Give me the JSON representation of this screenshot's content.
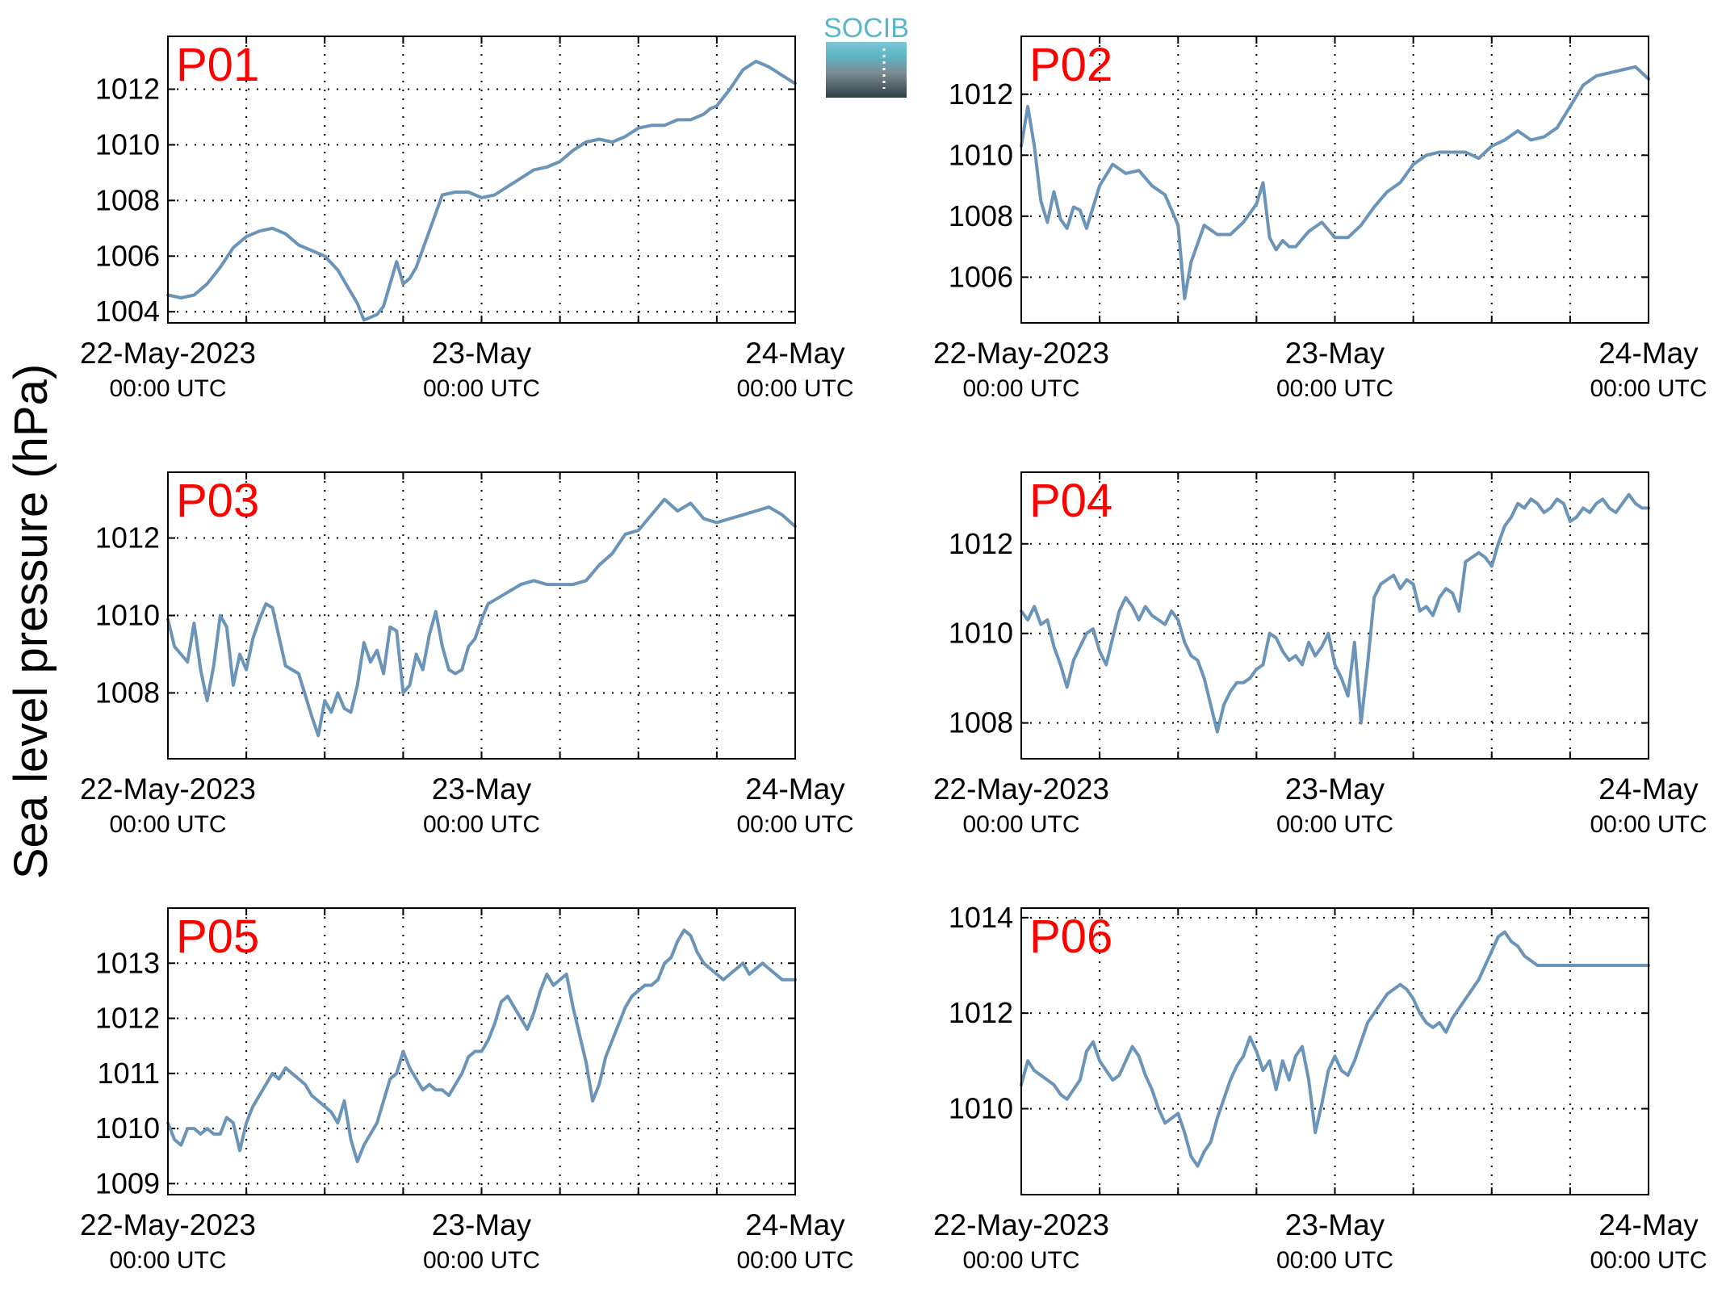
{
  "figure": {
    "ylabel": "Sea level pressure (hPa)",
    "logo_text": "SOCIB",
    "line_color": "#6a94b8",
    "label_color": "#ff0000",
    "x_ticks": [
      {
        "date": "22-May-2023",
        "time": "00:00 UTC"
      },
      {
        "date": "23-May",
        "time": "00:00 UTC"
      },
      {
        "date": "24-May",
        "time": "00:00 UTC"
      }
    ]
  },
  "chart_data": [
    {
      "type": "line",
      "title": "P01",
      "x_unit": "hours since 22-May-2023 00:00 UTC",
      "xlim": [
        0,
        48
      ],
      "ylim": [
        1003.6,
        1013.9
      ],
      "yticks": [
        1004,
        1006,
        1008,
        1010,
        1012
      ],
      "x": [
        0,
        1,
        2,
        3,
        4,
        5,
        6,
        7,
        8,
        9,
        10,
        11,
        12,
        13,
        14,
        14.5,
        15,
        15.5,
        16,
        16.5,
        17,
        17.5,
        18,
        18.5,
        19,
        20,
        21,
        22,
        23,
        24,
        25,
        26,
        27,
        28,
        29,
        30,
        31,
        32,
        33,
        34,
        35,
        36,
        37,
        38,
        39,
        40,
        41,
        41.5,
        42,
        43,
        44,
        45,
        46,
        47,
        48
      ],
      "y": [
        1004.6,
        1004.5,
        1004.6,
        1005,
        1005.6,
        1006.3,
        1006.7,
        1006.9,
        1007.0,
        1006.8,
        1006.4,
        1006.2,
        1006.0,
        1005.5,
        1004.7,
        1004.3,
        1003.7,
        1003.8,
        1003.9,
        1004.2,
        1005.0,
        1005.8,
        1005.0,
        1005.2,
        1005.6,
        1006.9,
        1008.2,
        1008.3,
        1008.3,
        1008.1,
        1008.2,
        1008.5,
        1008.8,
        1009.1,
        1009.2,
        1009.4,
        1009.8,
        1010.1,
        1010.2,
        1010.1,
        1010.3,
        1010.6,
        1010.7,
        1010.7,
        1010.9,
        1010.9,
        1011.1,
        1011.3,
        1011.4,
        1012.0,
        1012.7,
        1013.0,
        1012.8,
        1012.5,
        1012.2
      ]
    },
    {
      "type": "line",
      "title": "P02",
      "x_unit": "hours since 22-May-2023 00:00 UTC",
      "xlim": [
        0,
        48
      ],
      "ylim": [
        1004.5,
        1013.9
      ],
      "yticks": [
        1006,
        1008,
        1010,
        1012
      ],
      "x": [
        0,
        0.5,
        1,
        1.5,
        2,
        2.5,
        3,
        3.5,
        4,
        4.5,
        5,
        5.5,
        6,
        7,
        8,
        9,
        10,
        11,
        12,
        12.5,
        13,
        13.5,
        14,
        15,
        16,
        17,
        18,
        18.5,
        19,
        19.5,
        20,
        20.5,
        21,
        22,
        23,
        24,
        25,
        26,
        27,
        28,
        29,
        30,
        31,
        32,
        33,
        34,
        35,
        36,
        37,
        38,
        39,
        40,
        41,
        42,
        43,
        44,
        45,
        46,
        47,
        48
      ],
      "y": [
        1010.3,
        1011.6,
        1010.3,
        1008.5,
        1007.8,
        1008.8,
        1007.9,
        1007.6,
        1008.3,
        1008.2,
        1007.6,
        1008.3,
        1009.0,
        1009.7,
        1009.4,
        1009.5,
        1009.0,
        1008.7,
        1007.7,
        1005.3,
        1006.5,
        1007.1,
        1007.7,
        1007.4,
        1007.4,
        1007.8,
        1008.4,
        1009.1,
        1007.3,
        1006.9,
        1007.2,
        1007.0,
        1007.0,
        1007.5,
        1007.8,
        1007.3,
        1007.3,
        1007.7,
        1008.3,
        1008.8,
        1009.1,
        1009.7,
        1010.0,
        1010.1,
        1010.1,
        1010.1,
        1009.9,
        1010.3,
        1010.5,
        1010.8,
        1010.5,
        1010.6,
        1010.9,
        1011.6,
        1012.3,
        1012.6,
        1012.7,
        1012.8,
        1012.9,
        1012.5
      ]
    },
    {
      "type": "line",
      "title": "P03",
      "x_unit": "hours since 22-May-2023 00:00 UTC",
      "xlim": [
        0,
        48
      ],
      "ylim": [
        1006.3,
        1013.7
      ],
      "yticks": [
        1008,
        1010,
        1012
      ],
      "x": [
        0,
        0.5,
        1,
        1.5,
        2,
        2.5,
        3,
        3.5,
        4,
        4.5,
        5,
        5.5,
        6,
        6.5,
        7,
        7.5,
        8,
        9,
        10,
        11,
        11.5,
        12,
        12.5,
        13,
        13.5,
        14,
        14.5,
        15,
        15.5,
        16,
        16.5,
        17,
        17.5,
        18,
        18.5,
        19,
        19.5,
        20,
        20.5,
        21,
        21.5,
        22,
        22.5,
        23,
        23.5,
        24,
        24.5,
        25,
        26,
        27,
        28,
        29,
        30,
        31,
        32,
        33,
        34,
        35,
        36,
        37,
        38,
        39,
        40,
        41,
        42,
        43,
        44,
        45,
        46,
        47,
        48
      ],
      "y": [
        1009.9,
        1009.2,
        1009.0,
        1008.8,
        1009.8,
        1008.6,
        1007.8,
        1008.7,
        1010.0,
        1009.7,
        1008.2,
        1009.0,
        1008.6,
        1009.4,
        1009.9,
        1010.3,
        1010.2,
        1008.7,
        1008.5,
        1007.4,
        1006.9,
        1007.8,
        1007.5,
        1008.0,
        1007.6,
        1007.5,
        1008.2,
        1009.3,
        1008.8,
        1009.1,
        1008.5,
        1009.7,
        1009.6,
        1008.0,
        1008.2,
        1009.0,
        1008.6,
        1009.5,
        1010.1,
        1009.2,
        1008.6,
        1008.5,
        1008.6,
        1009.2,
        1009.4,
        1009.9,
        1010.3,
        1010.4,
        1010.6,
        1010.8,
        1010.9,
        1010.8,
        1010.8,
        1010.8,
        1010.9,
        1011.3,
        1011.6,
        1012.1,
        1012.2,
        1012.6,
        1013.0,
        1012.7,
        1012.9,
        1012.5,
        1012.4,
        1012.5,
        1012.6,
        1012.7,
        1012.8,
        1012.6,
        1012.3
      ]
    },
    {
      "type": "line",
      "title": "P04",
      "x_unit": "hours since 22-May-2023 00:00 UTC",
      "xlim": [
        0,
        48
      ],
      "ylim": [
        1007.2,
        1013.6
      ],
      "yticks": [
        1008,
        1010,
        1012
      ],
      "x": [
        0,
        0.5,
        1,
        1.5,
        2,
        2.5,
        3,
        3.5,
        4,
        4.5,
        5,
        5.5,
        6,
        6.5,
        7,
        7.5,
        8,
        8.5,
        9,
        9.5,
        10,
        10.5,
        11,
        11.5,
        12,
        12.5,
        13,
        13.5,
        14,
        14.5,
        15,
        15.5,
        16,
        16.5,
        17,
        17.5,
        18,
        18.5,
        19,
        19.5,
        20,
        20.5,
        21,
        21.5,
        22,
        22.5,
        23,
        23.5,
        24,
        24.5,
        25,
        25.5,
        26,
        26.5,
        27,
        27.5,
        28,
        28.5,
        29,
        29.5,
        30,
        30.5,
        31,
        31.5,
        32,
        32.5,
        33,
        33.5,
        34,
        34.5,
        35,
        35.5,
        36,
        36.5,
        37,
        37.5,
        38,
        38.5,
        39,
        39.5,
        40,
        40.5,
        41,
        41.5,
        42,
        42.5,
        43,
        43.5,
        44,
        44.5,
        45,
        45.5,
        46,
        46.5,
        47,
        47.5,
        48
      ],
      "y": [
        1010.5,
        1010.3,
        1010.6,
        1010.2,
        1010.3,
        1009.7,
        1009.3,
        1008.8,
        1009.4,
        1009.7,
        1010.0,
        1010.1,
        1009.6,
        1009.3,
        1009.9,
        1010.5,
        1010.8,
        1010.6,
        1010.3,
        1010.6,
        1010.4,
        1010.3,
        1010.2,
        1010.5,
        1010.3,
        1009.8,
        1009.5,
        1009.4,
        1009.0,
        1008.4,
        1007.8,
        1008.4,
        1008.7,
        1008.9,
        1008.9,
        1009.0,
        1009.2,
        1009.3,
        1010.0,
        1009.9,
        1009.6,
        1009.4,
        1009.5,
        1009.3,
        1009.8,
        1009.5,
        1009.7,
        1010.0,
        1009.3,
        1009.0,
        1008.6,
        1009.8,
        1008.0,
        1009.3,
        1010.8,
        1011.1,
        1011.2,
        1011.3,
        1011.0,
        1011.2,
        1011.1,
        1010.5,
        1010.6,
        1010.4,
        1010.8,
        1011.0,
        1010.9,
        1010.5,
        1011.6,
        1011.7,
        1011.8,
        1011.7,
        1011.5,
        1012.0,
        1012.4,
        1012.6,
        1012.9,
        1012.8,
        1013.0,
        1012.9,
        1012.7,
        1012.8,
        1013.0,
        1012.9,
        1012.5,
        1012.6,
        1012.8,
        1012.7,
        1012.9,
        1013.0,
        1012.8,
        1012.7,
        1012.9,
        1013.1,
        1012.9,
        1012.8,
        1012.8
      ]
    },
    {
      "type": "line",
      "title": "P05",
      "x_unit": "hours since 22-May-2023 00:00 UTC",
      "xlim": [
        0,
        48
      ],
      "ylim": [
        1008.8,
        1014.0
      ],
      "yticks": [
        1009,
        1010,
        1011,
        1012,
        1013
      ],
      "x": [
        0,
        0.5,
        1,
        1.5,
        2,
        2.5,
        3,
        3.5,
        4,
        4.5,
        5,
        5.5,
        6,
        6.5,
        7,
        7.5,
        8,
        8.5,
        9,
        9.5,
        10,
        10.5,
        11,
        11.5,
        12,
        12.5,
        13,
        13.5,
        14,
        14.5,
        15,
        15.5,
        16,
        16.5,
        17,
        17.5,
        18,
        18.5,
        19,
        19.5,
        20,
        20.5,
        21,
        21.5,
        22,
        22.5,
        23,
        23.5,
        24,
        24.5,
        25,
        25.5,
        26,
        26.5,
        27,
        27.5,
        28,
        28.5,
        29,
        29.5,
        30,
        30.5,
        31,
        31.5,
        32,
        32.5,
        33,
        33.5,
        34,
        34.5,
        35,
        35.5,
        36,
        36.5,
        37,
        37.5,
        38,
        38.5,
        39,
        39.5,
        40,
        40.5,
        41,
        41.5,
        42,
        42.5,
        43,
        43.5,
        44,
        44.5,
        45,
        45.5,
        46,
        46.5,
        47,
        47.5,
        48
      ],
      "y": [
        1010.1,
        1009.8,
        1009.7,
        1010.0,
        1010.0,
        1009.9,
        1010.0,
        1009.9,
        1009.9,
        1010.2,
        1010.1,
        1009.6,
        1010.1,
        1010.4,
        1010.6,
        1010.8,
        1011.0,
        1010.9,
        1011.1,
        1011.0,
        1010.9,
        1010.8,
        1010.6,
        1010.5,
        1010.4,
        1010.3,
        1010.1,
        1010.5,
        1009.8,
        1009.4,
        1009.7,
        1009.9,
        1010.1,
        1010.5,
        1010.9,
        1011.0,
        1011.4,
        1011.1,
        1010.9,
        1010.7,
        1010.8,
        1010.7,
        1010.7,
        1010.6,
        1010.8,
        1011.0,
        1011.3,
        1011.4,
        1011.4,
        1011.6,
        1011.9,
        1012.3,
        1012.4,
        1012.2,
        1012.0,
        1011.8,
        1012.1,
        1012.5,
        1012.8,
        1012.6,
        1012.7,
        1012.8,
        1012.2,
        1011.7,
        1011.2,
        1010.5,
        1010.8,
        1011.3,
        1011.6,
        1011.9,
        1012.2,
        1012.4,
        1012.5,
        1012.6,
        1012.6,
        1012.7,
        1013.0,
        1013.1,
        1013.4,
        1013.6,
        1013.5,
        1013.2,
        1013.0,
        1012.9,
        1012.8,
        1012.7,
        1012.8,
        1012.9,
        1013.0,
        1012.8,
        1012.9,
        1013.0,
        1012.9,
        1012.8,
        1012.7,
        1012.7,
        1012.7
      ]
    },
    {
      "type": "line",
      "title": "P06",
      "x_unit": "hours since 22-May-2023 00:00 UTC",
      "xlim": [
        0,
        48
      ],
      "ylim": [
        1008.2,
        1014.2
      ],
      "yticks": [
        1010,
        1012,
        1014
      ],
      "x": [
        0,
        0.5,
        1,
        1.5,
        2,
        2.5,
        3,
        3.5,
        4,
        4.5,
        5,
        5.5,
        6,
        6.5,
        7,
        7.5,
        8,
        8.5,
        9,
        9.5,
        10,
        10.5,
        11,
        11.5,
        12,
        12.5,
        13,
        13.5,
        14,
        14.5,
        15,
        15.5,
        16,
        16.5,
        17,
        17.5,
        18,
        18.5,
        19,
        19.5,
        20,
        20.5,
        21,
        21.5,
        22,
        22.5,
        23,
        23.5,
        24,
        24.5,
        25,
        25.5,
        26,
        26.5,
        27,
        27.5,
        28,
        28.5,
        29,
        29.5,
        30,
        30.5,
        31,
        31.5,
        32,
        32.5,
        33,
        33.5,
        34,
        34.5,
        35,
        35.5,
        36,
        36.5,
        37,
        37.5,
        38,
        38.5,
        39,
        39.5,
        40,
        40.5,
        41,
        41.5,
        42,
        42.5,
        43,
        43.5,
        44,
        44.5,
        45,
        45.5,
        46,
        46.5,
        47,
        47.5,
        48
      ],
      "y": [
        1010.5,
        1011.0,
        1010.8,
        1010.7,
        1010.6,
        1010.5,
        1010.3,
        1010.2,
        1010.4,
        1010.6,
        1011.2,
        1011.4,
        1011.0,
        1010.8,
        1010.6,
        1010.7,
        1011.0,
        1011.3,
        1011.1,
        1010.7,
        1010.4,
        1010.0,
        1009.7,
        1009.8,
        1009.9,
        1009.5,
        1009.0,
        1008.8,
        1009.1,
        1009.3,
        1009.8,
        1010.2,
        1010.6,
        1010.9,
        1011.1,
        1011.5,
        1011.2,
        1010.8,
        1011.0,
        1010.4,
        1011.0,
        1010.6,
        1011.1,
        1011.3,
        1010.6,
        1009.5,
        1010.1,
        1010.8,
        1011.1,
        1010.8,
        1010.7,
        1011.0,
        1011.4,
        1011.8,
        1012.0,
        1012.2,
        1012.4,
        1012.5,
        1012.6,
        1012.5,
        1012.3,
        1012.0,
        1011.8,
        1011.7,
        1011.8,
        1011.6,
        1011.9,
        1012.1,
        1012.3,
        1012.5,
        1012.7,
        1013.0,
        1013.3,
        1013.6,
        1013.7,
        1013.5,
        1013.4,
        1013.2,
        1013.1,
        1013.0,
        1013.0,
        1013.0,
        1013.0,
        1013.0,
        1013.0,
        1013.0,
        1013.0,
        1013.0,
        1013.0,
        1013.0,
        1013.0,
        1013.0,
        1013.0,
        1013.0,
        1013.0,
        1013.0,
        1013.0
      ]
    }
  ]
}
